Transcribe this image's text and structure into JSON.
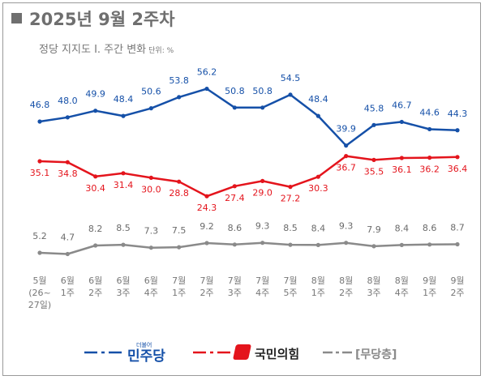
{
  "title": "2025년 9월 2주차",
  "subtitle": "정당 지지도 Ⅰ. 주간 변화",
  "unit": "단위: %",
  "chart_data": {
    "type": "line",
    "categories": [
      [
        "5월",
        "(26~",
        "27일)"
      ],
      [
        "6월",
        "1주"
      ],
      [
        "6월",
        "2주"
      ],
      [
        "6월",
        "3주"
      ],
      [
        "6월",
        "4주"
      ],
      [
        "7월",
        "1주"
      ],
      [
        "7월",
        "2주"
      ],
      [
        "7월",
        "3주"
      ],
      [
        "7월",
        "4주"
      ],
      [
        "7월",
        "5주"
      ],
      [
        "8월",
        "1주"
      ],
      [
        "8월",
        "2주"
      ],
      [
        "8월",
        "3주"
      ],
      [
        "8월",
        "4주"
      ],
      [
        "9월",
        "1주"
      ],
      [
        "9월",
        "2주"
      ]
    ],
    "series": [
      {
        "name": "민주당",
        "color": "#1550a8",
        "values": [
          46.8,
          48.0,
          49.9,
          48.4,
          50.6,
          53.8,
          56.2,
          50.8,
          50.8,
          54.5,
          48.4,
          39.9,
          45.8,
          46.7,
          44.6,
          44.3
        ]
      },
      {
        "name": "국민의힘",
        "color": "#e4141c",
        "values": [
          35.1,
          34.8,
          30.4,
          31.4,
          30.0,
          28.8,
          24.3,
          27.4,
          29.0,
          27.2,
          30.3,
          36.7,
          35.5,
          36.1,
          36.2,
          36.4
        ]
      },
      {
        "name": "[무당층]",
        "color": "#8a8a8a",
        "values": [
          5.2,
          4.7,
          8.2,
          8.5,
          7.3,
          7.5,
          9.2,
          8.6,
          9.3,
          8.5,
          8.4,
          9.3,
          7.9,
          8.4,
          8.6,
          8.7
        ]
      }
    ]
  },
  "legend": {
    "dem_small": "더불어",
    "dem": "민주당",
    "ppp": "국민의힘",
    "ind": "[무당층]"
  }
}
